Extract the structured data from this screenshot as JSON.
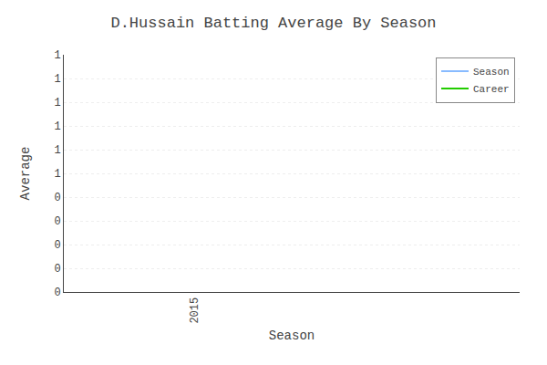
{
  "chart_data": {
    "type": "line",
    "title": "D.Hussain Batting Average By Season",
    "x_label": "Season",
    "y_label": "Average",
    "x": [
      2015
    ],
    "series": [
      {
        "name": "Season",
        "color": "#88bbff",
        "values": [
          0.0
        ]
      },
      {
        "name": "Career",
        "color": "#22cc00",
        "values": [
          0.0
        ]
      }
    ],
    "xlim": [
      2014.6,
      2016.0
    ],
    "xticks": [
      2015
    ],
    "ylim": [
      0,
      1.0
    ],
    "yticks": [
      0,
      {
        "value": 0.1,
        "label": "0"
      },
      {
        "value": 0.2,
        "label": "0"
      },
      {
        "value": 0.3,
        "label": "0"
      },
      {
        "value": 0.4,
        "label": "0"
      },
      {
        "value": 0.5,
        "label": "1"
      },
      {
        "value": 0.6,
        "label": "1"
      },
      {
        "value": 0.7,
        "label": "1"
      },
      {
        "value": 0.8,
        "label": "1"
      },
      {
        "value": 0.9,
        "label": "1"
      },
      1.0
    ],
    "grid": "y",
    "legend": "upper right"
  }
}
